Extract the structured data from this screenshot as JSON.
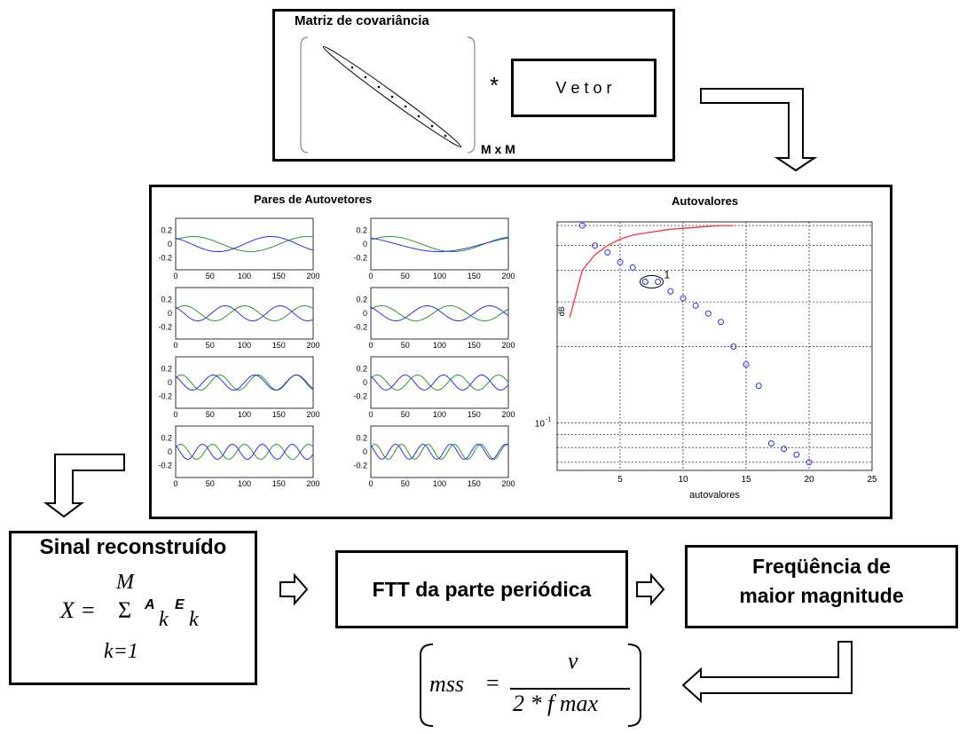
{
  "covariance": {
    "title": "Matriz de covariância",
    "size_label": "M x M",
    "operator": "*",
    "vector_label": "V e t o r"
  },
  "main_panel": {
    "pairs_title": "Pares de Autovetores",
    "eig_title": "Autovalores",
    "eig_xlabel": "autovalores",
    "eig_ylabel": "dB",
    "eig_ytick": "10",
    "eig_ytick_exp": "-1",
    "eig_annotation": "1",
    "pair_yticks": [
      "0.2",
      "0",
      "-0.2"
    ],
    "pair_xticks": [
      "0",
      "50",
      "100",
      "150",
      "200"
    ],
    "eig_xticks": [
      "5",
      "10",
      "15",
      "20",
      "25"
    ]
  },
  "reconstructed": {
    "title": "Sinal reconstruído",
    "formula_lhs": "X =",
    "sum_upper": "M",
    "sum_symbol": "Σ",
    "sum_lower": "k=1",
    "term_a": "A",
    "term_e": "E",
    "subscript": "k"
  },
  "fft": {
    "label": "FTT da parte periódica"
  },
  "frequency": {
    "line1": "Freqüência de",
    "line2": "maior magnitude"
  },
  "mss": {
    "lhs": "mss",
    "eq": "=",
    "numerator": "v",
    "denominator": "2 * f max"
  },
  "colors": {
    "blue": "#2b2bff",
    "green": "#2a9a2a",
    "red": "#ff3030"
  },
  "chart_data": {
    "type": "scatter",
    "title": "Autovalores",
    "xlabel": "autovalores",
    "ylabel": "dB",
    "xlim": [
      0,
      25
    ],
    "yscale": "log",
    "grid": true,
    "series": [
      {
        "values_x": [
          2,
          3,
          4,
          5,
          6,
          7,
          8,
          9,
          10,
          11,
          12,
          13,
          14,
          15,
          16,
          17,
          18,
          19,
          20
        ],
        "values_y": [
          0.6,
          0.5,
          0.47,
          0.43,
          0.41,
          0.36,
          0.36,
          0.33,
          0.31,
          0.29,
          0.27,
          0.25,
          0.2,
          0.17,
          0.14,
          0.083,
          0.079,
          0.075,
          0.07
        ]
      }
    ],
    "line_points_x": [
      1,
      2,
      3,
      4,
      5,
      6,
      7,
      8,
      9,
      10,
      11,
      12,
      13,
      14
    ],
    "line_points_y": [
      0.26,
      0.4,
      0.46,
      0.5,
      0.53,
      0.55,
      0.56,
      0.57,
      0.58,
      0.585,
      0.59,
      0.595,
      0.6,
      0.6
    ]
  }
}
